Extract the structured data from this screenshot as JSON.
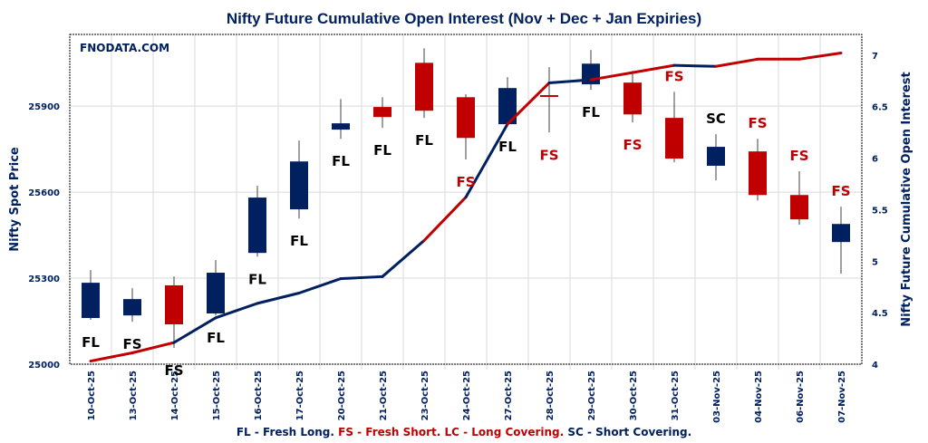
{
  "chart_data": {
    "type": "candlestick+line",
    "title": "Nifty Future Cumulative Open Interest (Nov + Dec + Jan Expiries)",
    "watermark": "FNODATA.COM",
    "ylabel": "Nifty Spot Price",
    "y2label": "Nifty Future Cumulative Open Interest",
    "ylim": [
      25000,
      26150
    ],
    "y_ticks": [
      25000,
      25300,
      25600,
      25900
    ],
    "y2lim": [
      4,
      7.2
    ],
    "y2_ticks": [
      4,
      4.5,
      5,
      5.5,
      6,
      6.5,
      7
    ],
    "grid": true,
    "categories": [
      "10-Oct-25",
      "13-Oct-25",
      "14-Oct-25",
      "15-Oct-25",
      "16-Oct-25",
      "17-Oct-25",
      "20-Oct-25",
      "21-Oct-25",
      "23-Oct-25",
      "24-Oct-25",
      "27-Oct-25",
      "28-Oct-25",
      "29-Oct-25",
      "30-Oct-25",
      "31-Oct-25",
      "03-Nov-25",
      "04-Nov-25",
      "06-Nov-25",
      "07-Nov-25"
    ],
    "ohlc": [
      {
        "open": 25161,
        "high": 25328,
        "low": 25155,
        "close": 25284
      },
      {
        "open": 25170,
        "high": 25265,
        "low": 25148,
        "close": 25227
      },
      {
        "open": 25275,
        "high": 25306,
        "low": 25057,
        "close": 25139
      },
      {
        "open": 25177,
        "high": 25363,
        "low": 25170,
        "close": 25319
      },
      {
        "open": 25388,
        "high": 25622,
        "low": 25375,
        "close": 25581
      },
      {
        "open": 25540,
        "high": 25780,
        "low": 25508,
        "close": 25707
      },
      {
        "open": 25818,
        "high": 25925,
        "low": 25786,
        "close": 25840
      },
      {
        "open": 25897,
        "high": 25931,
        "low": 25824,
        "close": 25862
      },
      {
        "open": 26051,
        "high": 26102,
        "low": 25859,
        "close": 25884
      },
      {
        "open": 25931,
        "high": 25941,
        "low": 25714,
        "close": 25789
      },
      {
        "open": 25837,
        "high": 26001,
        "low": 25837,
        "close": 25963
      },
      {
        "open": 25935,
        "high": 26036,
        "low": 25808,
        "close": 25935
      },
      {
        "open": 25976,
        "high": 26096,
        "low": 25957,
        "close": 26048
      },
      {
        "open": 25982,
        "high": 26023,
        "low": 25843,
        "close": 25871
      },
      {
        "open": 25859,
        "high": 25950,
        "low": 25704,
        "close": 25717
      },
      {
        "open": 25692,
        "high": 25802,
        "low": 25641,
        "close": 25758
      },
      {
        "open": 25742,
        "high": 25786,
        "low": 25571,
        "close": 25590
      },
      {
        "open": 25590,
        "high": 25673,
        "low": 25486,
        "close": 25505
      },
      {
        "open": 25426,
        "high": 25549,
        "low": 25316,
        "close": 25489
      }
    ],
    "open_interest": [
      4.03,
      4.11,
      4.21,
      4.45,
      4.59,
      4.69,
      4.83,
      4.85,
      5.2,
      5.62,
      6.33,
      6.73,
      6.76,
      6.83,
      6.9,
      6.89,
      6.96,
      6.96,
      7.02
    ],
    "labels": [
      {
        "text": "FL",
        "color": "#000000",
        "place": "below"
      },
      {
        "text": "FS",
        "color": "#000000",
        "place": "below"
      },
      {
        "text": "FS",
        "color": "#000000",
        "place": "below"
      },
      {
        "text": "FL",
        "color": "#000000",
        "place": "below"
      },
      {
        "text": "FL",
        "color": "#000000",
        "place": "below"
      },
      {
        "text": "FL",
        "color": "#000000",
        "place": "below"
      },
      {
        "text": "FL",
        "color": "#000000",
        "place": "below"
      },
      {
        "text": "FL",
        "color": "#000000",
        "place": "below"
      },
      {
        "text": "FL",
        "color": "#000000",
        "place": "below"
      },
      {
        "text": "FS",
        "color": "#c00000",
        "place": "below"
      },
      {
        "text": "FL",
        "color": "#000000",
        "place": "below"
      },
      {
        "text": "FS",
        "color": "#c00000",
        "place": "below"
      },
      {
        "text": "FL",
        "color": "#000000",
        "place": "below"
      },
      {
        "text": "FS",
        "color": "#c00000",
        "place": "below"
      },
      {
        "text": "FS",
        "color": "#c00000",
        "place": "above"
      },
      {
        "text": "SC",
        "color": "#000000",
        "place": "above"
      },
      {
        "text": "FS",
        "color": "#c00000",
        "place": "above"
      },
      {
        "text": "FS",
        "color": "#c00000",
        "place": "above"
      },
      {
        "text": "FS",
        "color": "#c00000",
        "place": "above"
      }
    ],
    "colors": {
      "up": "#002060",
      "down": "#c00000",
      "long": "#002060",
      "short": "#c00000"
    },
    "legend": [
      {
        "text": "FL - Fresh Long. ",
        "color": "#002060"
      },
      {
        "text": "FS - Fresh Short. LC - Long Covering. ",
        "color": "#c00000"
      },
      {
        "text": "SC - Short Covering.",
        "color": "#002060"
      }
    ]
  }
}
